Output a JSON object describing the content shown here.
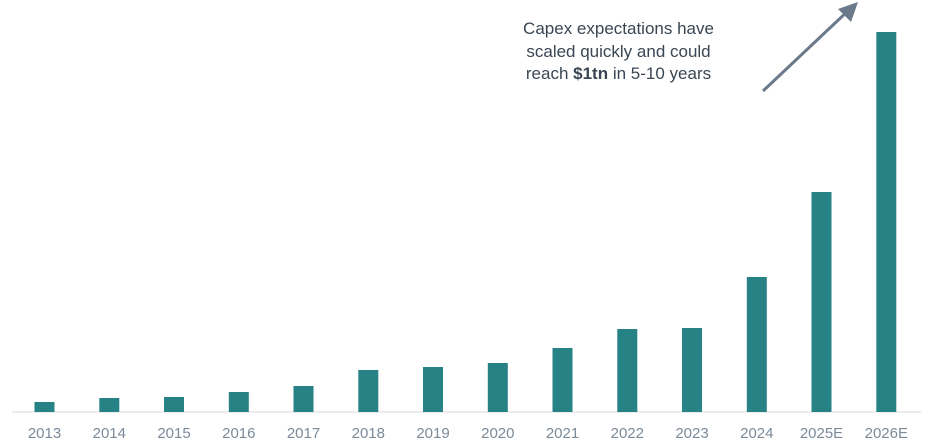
{
  "chart_data": {
    "type": "bar",
    "title": "",
    "xlabel": "",
    "ylabel": "",
    "categories": [
      "2013",
      "2014",
      "2015",
      "2016",
      "2017",
      "2018",
      "2019",
      "2020",
      "2021",
      "2022",
      "2023",
      "2024",
      "2025E",
      "2026E"
    ],
    "values": [
      10,
      14,
      15,
      20,
      26,
      42,
      45,
      49,
      64,
      83,
      84,
      135,
      220,
      380
    ],
    "ylim": [
      0,
      400
    ],
    "grid": false,
    "bar_color": "#268285",
    "annotation": {
      "line1": "Capex expectations have",
      "line2": "scaled quickly and could",
      "line3_before": "reach ",
      "line3_bold": "$1tn",
      "line3_after": " in 5-10 years",
      "arrow_color": "#6b7a8a"
    }
  }
}
